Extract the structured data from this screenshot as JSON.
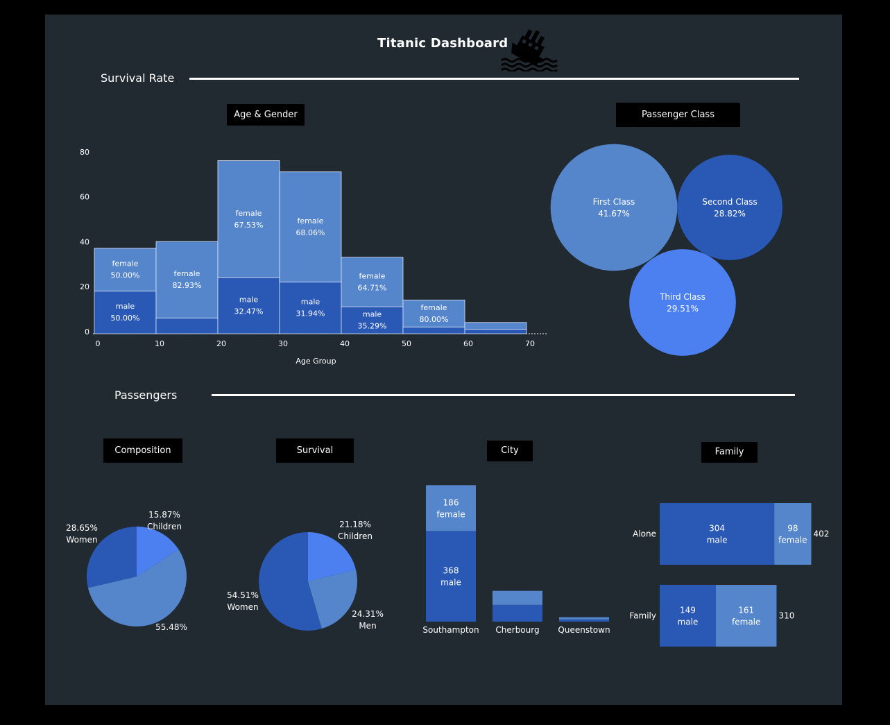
{
  "dashboard": {
    "title": "Titanic Dashboard",
    "icon": "sinking-ship-icon",
    "sections": {
      "survival_rate": "Survival Rate",
      "passengers": "Passengers"
    },
    "headers": {
      "age_gender": "Age & Gender",
      "passenger_class": "Passenger Class",
      "composition": "Composition",
      "survival": "Survival",
      "city": "City",
      "family": "Family"
    }
  },
  "colors": {
    "background": "#212a31",
    "female": "#5586cc",
    "male": "#2a58b5",
    "first_class": "#5586cc",
    "second_class": "#2a58b5",
    "third_class": "#4c80f0",
    "children": "#4c80f0",
    "women": "#2a58b5",
    "men": "#5586cc"
  },
  "chart_data": [
    {
      "id": "age_gender",
      "type": "bar",
      "subtype": "stacked histogram",
      "xlabel": "Age Group",
      "ylabel": "",
      "xlim": [
        0,
        70
      ],
      "ylim": [
        0,
        80
      ],
      "x_ticks": [
        "0",
        "10",
        "20",
        "30",
        "40",
        "50",
        "60",
        "70"
      ],
      "y_ticks": [
        "0",
        "20",
        "40",
        "60",
        "80"
      ],
      "bins": [
        {
          "range": [
            0,
            10
          ],
          "male": 19,
          "female": 19,
          "male_label": "male\n50.00%",
          "female_label": "female\n50.00%"
        },
        {
          "range": [
            10,
            20
          ],
          "male": 7,
          "female": 34,
          "male_label": "",
          "female_label": "female\n82.93%"
        },
        {
          "range": [
            20,
            30
          ],
          "male": 25,
          "female": 52,
          "male_label": "male\n32.47%",
          "female_label": "female\n67.53%"
        },
        {
          "range": [
            30,
            40
          ],
          "male": 23,
          "female": 49,
          "male_label": "male\n31.94%",
          "female_label": "female\n68.06%"
        },
        {
          "range": [
            40,
            50
          ],
          "male": 12,
          "female": 22,
          "male_label": "male\n35.29%",
          "female_label": "female\n64.71%"
        },
        {
          "range": [
            50,
            60
          ],
          "male": 3,
          "female": 12,
          "male_label": "",
          "female_label": "female\n80.00%"
        },
        {
          "range": [
            60,
            70
          ],
          "male": 2,
          "female": 3,
          "male_label": "",
          "female_label": ""
        }
      ]
    },
    {
      "id": "passenger_class",
      "type": "bubble",
      "items": [
        {
          "label": "First Class",
          "percent": "41.67%",
          "value": 41.67,
          "color_key": "first_class"
        },
        {
          "label": "Second Class",
          "percent": "28.82%",
          "value": 28.82,
          "color_key": "second_class"
        },
        {
          "label": "Third Class",
          "percent": "29.51%",
          "value": 29.51,
          "color_key": "third_class"
        }
      ]
    },
    {
      "id": "composition",
      "type": "pie",
      "slices": [
        {
          "label": "Children",
          "percent": "15.87%",
          "value": 15.87,
          "color_key": "children"
        },
        {
          "label": "Men",
          "percent": "55.48%",
          "value": 55.48,
          "color_key": "men"
        },
        {
          "label": "Women",
          "percent": "28.65%",
          "value": 28.65,
          "color_key": "women"
        }
      ]
    },
    {
      "id": "survival",
      "type": "pie",
      "slices": [
        {
          "label": "Children",
          "percent": "21.18%",
          "value": 21.18,
          "color_key": "children"
        },
        {
          "label": "Men",
          "percent": "24.31%",
          "value": 24.31,
          "color_key": "men"
        },
        {
          "label": "Women",
          "percent": "54.51%",
          "value": 54.51,
          "color_key": "women"
        }
      ]
    },
    {
      "id": "city",
      "type": "bar",
      "subtype": "stacked",
      "categories": [
        "Southampton",
        "Cherbourg",
        "Queenstown"
      ],
      "series": [
        {
          "name": "male",
          "values": [
            368,
            68,
            9
          ],
          "labels": [
            "368\nmale",
            "",
            ""
          ]
        },
        {
          "name": "female",
          "values": [
            186,
            57,
            9
          ],
          "labels": [
            "186\nfemale",
            "",
            ""
          ]
        }
      ]
    },
    {
      "id": "family",
      "type": "bar",
      "subtype": "horizontal stacked",
      "categories": [
        "Alone",
        "Family"
      ],
      "totals": [
        "402",
        "310"
      ],
      "series": [
        {
          "name": "male",
          "values": [
            304,
            149
          ],
          "labels": [
            "304\nmale",
            "149\nmale"
          ]
        },
        {
          "name": "female",
          "values": [
            98,
            161
          ],
          "labels": [
            "98\nfemale",
            "161\nfemale"
          ]
        }
      ]
    }
  ]
}
